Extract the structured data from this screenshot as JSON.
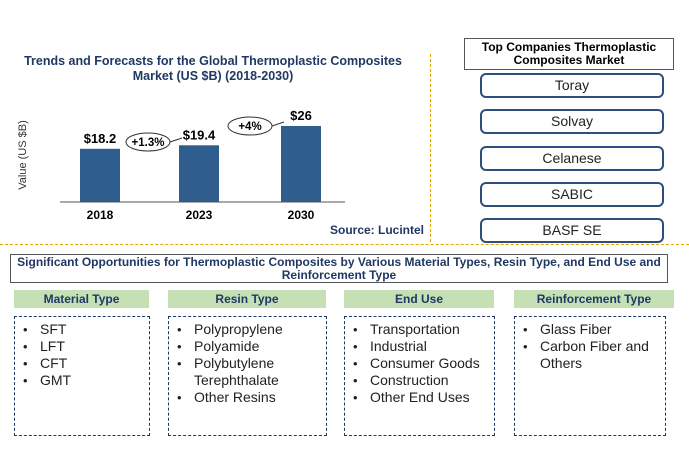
{
  "chart_data": {
    "type": "bar",
    "title": "Trends and Forecasts  for the Global Thermoplastic Composites Market (US $B) (2018-2030)",
    "categories": [
      "2018",
      "2023",
      "2030"
    ],
    "values": [
      18.2,
      19.4,
      26
    ],
    "value_labels": [
      "$18.2",
      "$19.4",
      "$26"
    ],
    "ylabel": "Value (US $B)",
    "ylim": [
      0,
      26
    ],
    "growth_annotations": [
      "+1.3%",
      "+4%"
    ],
    "bar_color": "#2e5d8e",
    "grid": false
  },
  "source": "Source: Lucintel",
  "top_companies": {
    "title": "Top Companies Thermoplastic Composites Market",
    "items": [
      "Toray",
      "Solvay",
      "Celanese",
      "SABIC",
      "BASF SE"
    ]
  },
  "opportunities": {
    "title": "Significant Opportunities for Thermoplastic Composites by Various Material Types, Resin Type, and End Use and Reinforcement Type",
    "header_color": "#c5e0b4",
    "categories": [
      {
        "heading": "Material Type",
        "items": [
          "SFT",
          "LFT",
          "CFT",
          "GMT"
        ]
      },
      {
        "heading": "Resin Type",
        "items": [
          "Polypropylene",
          "Polyamide",
          "Polybutylene Terephthalate",
          "Other Resins"
        ]
      },
      {
        "heading": "End Use",
        "items": [
          "Transportation",
          "Industrial",
          "Consumer Goods",
          "Construction",
          "Other End Uses"
        ]
      },
      {
        "heading": "Reinforcement Type",
        "items": [
          "Glass Fiber",
          "Carbon Fiber and Others"
        ]
      }
    ]
  }
}
